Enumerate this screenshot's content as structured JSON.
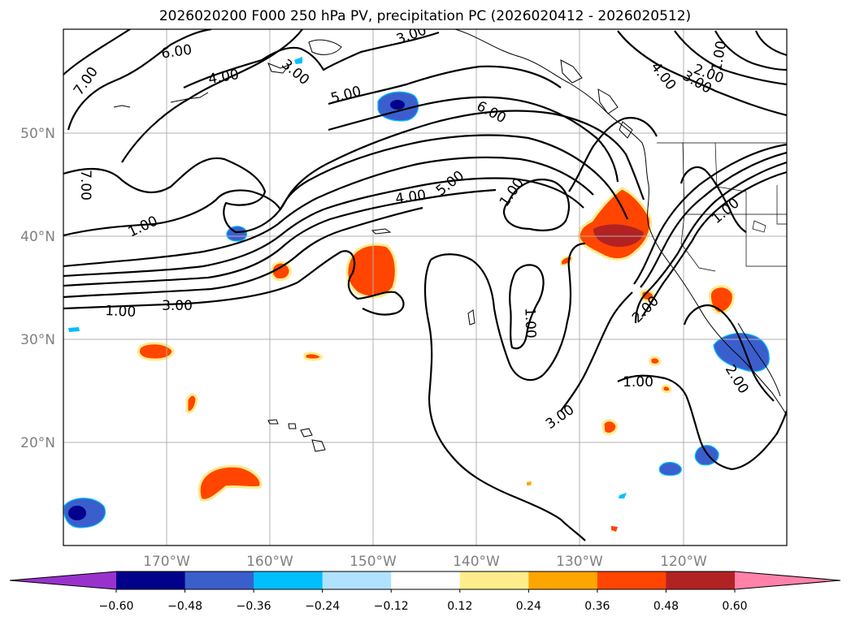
{
  "title": "2026020200 F000 250 hPa PV, precipitation PC (2026020412 - 2026020512)",
  "map": {
    "projection": "PlateCarree",
    "extent": {
      "lon_min": -180,
      "lon_max": -110,
      "lat_min": 10,
      "lat_max": 60
    },
    "lat_labels": [
      {
        "lat": 50,
        "label": "50°N"
      },
      {
        "lat": 40,
        "label": "40°N"
      },
      {
        "lat": 30,
        "label": "30°N"
      },
      {
        "lat": 20,
        "label": "20°N"
      }
    ],
    "lon_labels": [
      {
        "lon": -170,
        "label": "170°W"
      },
      {
        "lon": -160,
        "label": "160°W"
      },
      {
        "lon": -150,
        "label": "150°W"
      },
      {
        "lon": -140,
        "label": "140°W"
      },
      {
        "lon": -130,
        "label": "130°W"
      },
      {
        "lon": -120,
        "label": "120°W"
      }
    ],
    "grid": true
  },
  "pv_contour_labels": [
    "7.00",
    "6.00",
    "4.00",
    "3.00",
    "5.00",
    "3.00",
    "6.00",
    "4.00",
    "3.00",
    "2.00",
    "1.00",
    "7.00",
    "5.00",
    "4.00",
    "1.00",
    "1.00",
    "1.00",
    "1.00",
    "3.00",
    "1.00",
    "2.00",
    "1.00",
    "3.00",
    "2.00"
  ],
  "colorbar": {
    "bins": [
      {
        "color": "#9932CC"
      },
      {
        "color": "#00008B"
      },
      {
        "color": "#3A5FCD"
      },
      {
        "color": "#00BFFF"
      },
      {
        "color": "#B0E2FF"
      },
      {
        "color": "#FFFFFF"
      },
      {
        "color": "#FFEC8B"
      },
      {
        "color": "#FFA500"
      },
      {
        "color": "#FF4500"
      },
      {
        "color": "#B22222"
      },
      {
        "color": "#FF82AB"
      }
    ],
    "ticks": [
      "−0.60",
      "−0.48",
      "−0.36",
      "−0.24",
      "−0.12",
      "0.12",
      "0.24",
      "0.36",
      "0.48",
      "0.60"
    ]
  }
}
